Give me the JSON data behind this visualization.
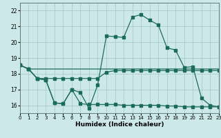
{
  "xlabel": "Humidex (Indice chaleur)",
  "background_color": "#cce8e8",
  "grid_color": "#aacccc",
  "line_color": "#1a6b5a",
  "xlim": [
    0,
    23
  ],
  "ylim": [
    15.5,
    22.5
  ],
  "xticks": [
    0,
    1,
    2,
    3,
    4,
    5,
    6,
    7,
    8,
    9,
    10,
    11,
    12,
    13,
    14,
    15,
    16,
    17,
    18,
    19,
    20,
    21,
    22,
    23
  ],
  "yticks": [
    16,
    17,
    18,
    19,
    20,
    21,
    22
  ],
  "line1_x": [
    0,
    1,
    2,
    3,
    4,
    5,
    6,
    7,
    8,
    9,
    10,
    11,
    12,
    13,
    14,
    15,
    16,
    17,
    18,
    19,
    20,
    21,
    22,
    23
  ],
  "line1_y": [
    18.55,
    18.3,
    18.3,
    18.3,
    18.3,
    18.3,
    18.3,
    18.3,
    18.3,
    18.3,
    18.3,
    18.3,
    18.3,
    18.3,
    18.3,
    18.3,
    18.3,
    18.3,
    18.3,
    18.3,
    18.3,
    18.3,
    18.3,
    18.3
  ],
  "line2_x": [
    0,
    1,
    2,
    3,
    4,
    5,
    6,
    7,
    8,
    9,
    10,
    11,
    12,
    13,
    14,
    15,
    16,
    17,
    18,
    19,
    20,
    21,
    22,
    23
  ],
  "line2_y": [
    18.55,
    18.3,
    17.7,
    17.7,
    17.7,
    17.7,
    17.7,
    17.7,
    17.7,
    17.7,
    18.1,
    18.2,
    18.2,
    18.2,
    18.2,
    18.2,
    18.2,
    18.2,
    18.2,
    18.2,
    18.2,
    18.2,
    18.2,
    18.2
  ],
  "line3_x": [
    0,
    1,
    2,
    3,
    4,
    5,
    6,
    7,
    8,
    9,
    10,
    11,
    12,
    13,
    14,
    15,
    16,
    17,
    18,
    19,
    20,
    21,
    22,
    23
  ],
  "line3_y": [
    18.55,
    18.3,
    17.7,
    17.6,
    16.15,
    16.1,
    17.0,
    16.8,
    15.8,
    17.3,
    20.4,
    20.35,
    20.3,
    21.6,
    21.75,
    21.4,
    21.1,
    19.65,
    19.5,
    18.4,
    18.45,
    16.45,
    16.0,
    15.9
  ],
  "line4_x": [
    0,
    1,
    2,
    3,
    4,
    5,
    6,
    7,
    8,
    9,
    10,
    11,
    12,
    13,
    14,
    15,
    16,
    17,
    18,
    19,
    20,
    21,
    22,
    23
  ],
  "line4_y": [
    18.55,
    18.3,
    17.7,
    17.6,
    16.15,
    16.1,
    17.0,
    16.1,
    16.05,
    16.05,
    16.05,
    16.05,
    16.0,
    16.0,
    16.0,
    16.0,
    16.0,
    15.95,
    15.95,
    15.9,
    15.9,
    15.9,
    15.9,
    15.9
  ]
}
